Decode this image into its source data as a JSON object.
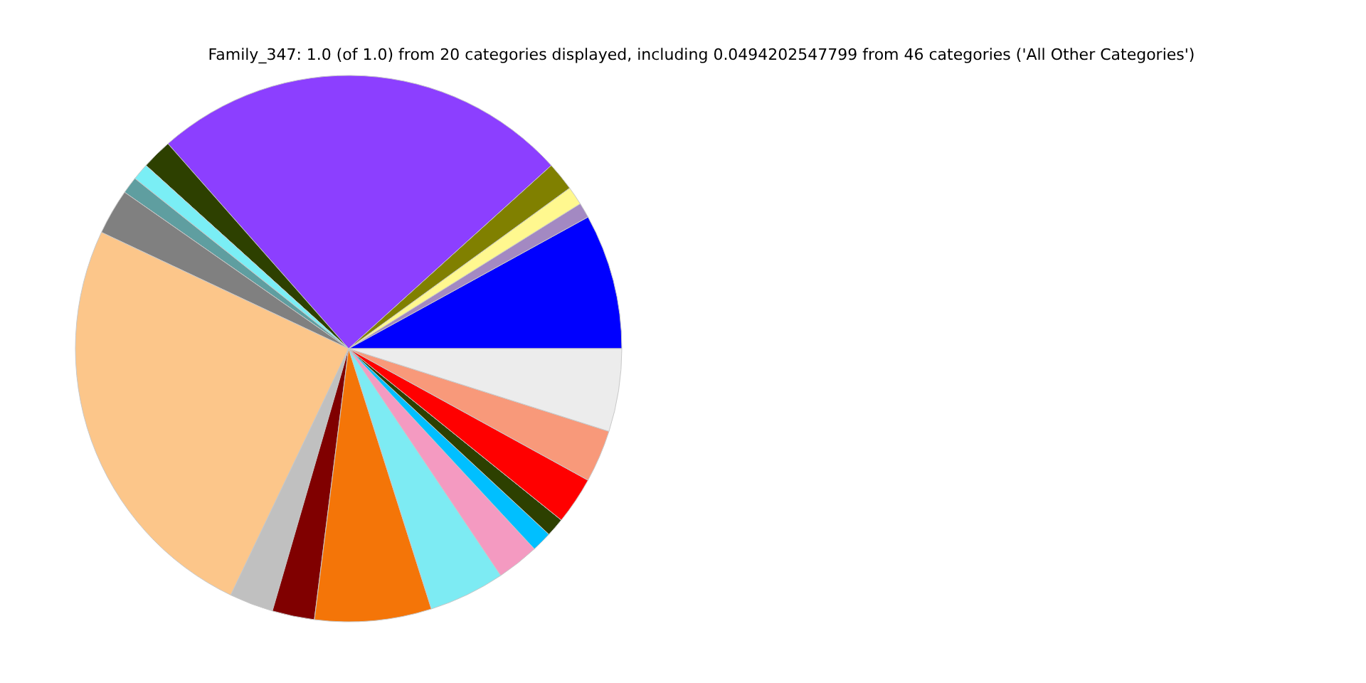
{
  "chart_data": {
    "type": "pie",
    "title": "Family_347: 1.0 (of 1.0) from 20 categories displayed, including 0.0494202547799 from 46 categories ('All Other Categories')",
    "categories": [
      null,
      null,
      null,
      null,
      null,
      null,
      null,
      null,
      null,
      null,
      null,
      null,
      null,
      null,
      null,
      null,
      null,
      null,
      null,
      null
    ],
    "values": [
      8.0,
      0.9,
      1.1,
      1.7,
      24.8,
      1.8,
      1.0,
      1.0,
      2.7,
      24.9,
      2.6,
      2.5,
      6.9,
      4.5,
      2.5,
      1.2,
      1.1,
      2.8,
      3.1,
      4.9
    ],
    "colors": [
      "#0000ff",
      "#a389c2",
      "#fff88f",
      "#808000",
      "#8c3fff",
      "#2d4000",
      "#7aeef5",
      "#5f9ea0",
      "#808080",
      "#fcc68a",
      "#c0c0c0",
      "#800000",
      "#f47508",
      "#7debf3",
      "#f49ac1",
      "#00bfff",
      "#2d4000",
      "#ff0000",
      "#f8997a",
      "#ececec"
    ]
  }
}
